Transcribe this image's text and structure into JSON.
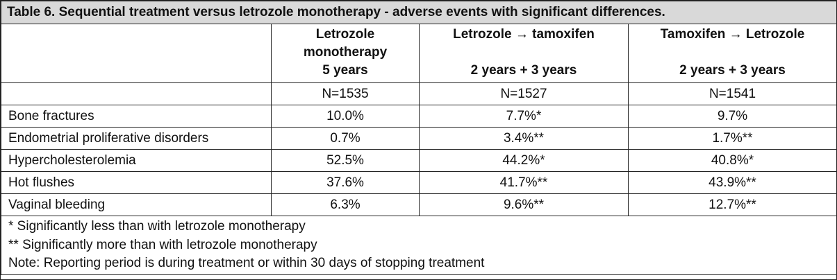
{
  "table": {
    "title": "Table 6. Sequential treatment versus letrozole monotherapy - adverse events with significant differences.",
    "columns": [
      {
        "line1": "Letrozole",
        "line2": "monotherapy",
        "line3": "5 years"
      },
      {
        "line1": "Letrozole → tamoxifen",
        "line2": "",
        "line3": "2 years + 3 years"
      },
      {
        "line1": "Tamoxifen → Letrozole",
        "line2": "",
        "line3": "2 years + 3 years"
      }
    ],
    "n_values": [
      "N=1535",
      "N=1527",
      "N=1541"
    ],
    "rows": [
      {
        "label": "Bone fractures",
        "values": [
          "10.0%",
          "7.7%*",
          "9.7%"
        ]
      },
      {
        "label": "Endometrial proliferative disorders",
        "values": [
          "0.7%",
          "3.4%**",
          "1.7%**"
        ]
      },
      {
        "label": "Hypercholesterolemia",
        "values": [
          "52.5%",
          "44.2%*",
          "40.8%*"
        ]
      },
      {
        "label": "Hot flushes",
        "values": [
          "37.6%",
          "41.7%**",
          "43.9%**"
        ]
      },
      {
        "label": "Vaginal bleeding",
        "values": [
          "6.3%",
          "9.6%**",
          "12.7%**"
        ]
      }
    ],
    "notes": [
      "*  Significantly less than with letrozole monotherapy",
      "**  Significantly more than with letrozole monotherapy",
      "Note: Reporting period is during treatment or within 30 days of stopping treatment"
    ]
  }
}
